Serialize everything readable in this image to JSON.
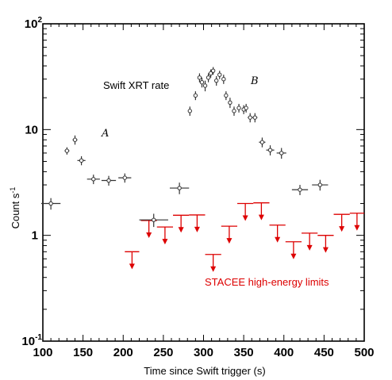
{
  "chart_data": {
    "type": "scatter",
    "xlabel": "Time since Swift trigger (s)",
    "ylabel_base": "Count s",
    "ylabel_exp": "-1",
    "xlim": [
      100,
      500
    ],
    "ylim": [
      0.1,
      100
    ],
    "yscale": "log",
    "x_ticks": [
      "100",
      "150",
      "200",
      "250",
      "300",
      "350",
      "400",
      "450",
      "500"
    ],
    "y_ticks": [
      {
        "value": 0.1,
        "base": "10",
        "exp": "-1"
      },
      {
        "value": 1,
        "base": "1",
        "exp": ""
      },
      {
        "value": 10,
        "base": "10",
        "exp": ""
      },
      {
        "value": 100,
        "base": "10",
        "exp": "2"
      }
    ],
    "annotations": {
      "xrt": "Swift XRT rate",
      "stacee": "STACEE high-energy limits",
      "region_a": "A",
      "region_b": "B"
    },
    "series": [
      {
        "color": "#333333",
        "points": [
          {
            "x": 110,
            "y": 2.0,
            "xerr": 12,
            "yerr": [
              0.25,
              0.25
            ]
          },
          {
            "x": 130,
            "y": 6.3,
            "xerr": 3,
            "yerr": [
              0.5,
              0.5
            ]
          },
          {
            "x": 140,
            "y": 8.0,
            "xerr": 3,
            "yerr": [
              0.8,
              0.8
            ]
          },
          {
            "x": 148,
            "y": 5.1,
            "xerr": 5,
            "yerr": [
              0.5,
              0.5
            ]
          },
          {
            "x": 163,
            "y": 3.4,
            "xerr": 8,
            "yerr": [
              0.35,
              0.35
            ]
          },
          {
            "x": 182,
            "y": 3.3,
            "xerr": 9,
            "yerr": [
              0.35,
              0.35
            ]
          },
          {
            "x": 202,
            "y": 3.5,
            "xerr": 8,
            "yerr": [
              0.35,
              0.35
            ]
          },
          {
            "x": 238,
            "y": 1.4,
            "xerr": 18,
            "yerr": [
              0.2,
              0.2
            ]
          },
          {
            "x": 270,
            "y": 2.8,
            "xerr": 12,
            "yerr": [
              0.35,
              0.35
            ]
          },
          {
            "x": 283,
            "y": 15.0,
            "xerr": 2,
            "yerr": [
              1.5,
              1.5
            ]
          },
          {
            "x": 290,
            "y": 21.0,
            "xerr": 2,
            "yerr": [
              2.0,
              2.0
            ]
          },
          {
            "x": 295,
            "y": 31.0,
            "xerr": 2,
            "yerr": [
              3.0,
              3.0
            ]
          },
          {
            "x": 298,
            "y": 28.0,
            "xerr": 2,
            "yerr": [
              3.0,
              3.0
            ]
          },
          {
            "x": 302,
            "y": 26.0,
            "xerr": 2,
            "yerr": [
              3.0,
              3.0
            ]
          },
          {
            "x": 306,
            "y": 31.0,
            "xerr": 2,
            "yerr": [
              3.0,
              3.0
            ]
          },
          {
            "x": 309,
            "y": 34.0,
            "xerr": 2,
            "yerr": [
              3.0,
              3.0
            ]
          },
          {
            "x": 312,
            "y": 36.0,
            "xerr": 2,
            "yerr": [
              3.0,
              3.0
            ]
          },
          {
            "x": 316,
            "y": 29.0,
            "xerr": 2,
            "yerr": [
              3.0,
              3.0
            ]
          },
          {
            "x": 320,
            "y": 33.0,
            "xerr": 2,
            "yerr": [
              3.0,
              3.0
            ]
          },
          {
            "x": 325,
            "y": 30.0,
            "xerr": 2,
            "yerr": [
              3.0,
              3.0
            ]
          },
          {
            "x": 328,
            "y": 21.0,
            "xerr": 2,
            "yerr": [
              2.0,
              2.0
            ]
          },
          {
            "x": 333,
            "y": 18.0,
            "xerr": 2,
            "yerr": [
              2.0,
              2.0
            ]
          },
          {
            "x": 338,
            "y": 15.0,
            "xerr": 2,
            "yerr": [
              1.5,
              1.5
            ]
          },
          {
            "x": 344,
            "y": 16.0,
            "xerr": 2,
            "yerr": [
              1.5,
              1.5
            ]
          },
          {
            "x": 350,
            "y": 15.5,
            "xerr": 2,
            "yerr": [
              1.5,
              1.5
            ]
          },
          {
            "x": 353,
            "y": 16.0,
            "xerr": 2,
            "yerr": [
              1.5,
              1.5
            ]
          },
          {
            "x": 358,
            "y": 13.0,
            "xerr": 3,
            "yerr": [
              1.3,
              1.3
            ]
          },
          {
            "x": 364,
            "y": 13.0,
            "xerr": 3,
            "yerr": [
              1.3,
              1.3
            ]
          },
          {
            "x": 373,
            "y": 7.6,
            "xerr": 4,
            "yerr": [
              0.8,
              0.8
            ]
          },
          {
            "x": 383,
            "y": 6.4,
            "xerr": 5,
            "yerr": [
              0.7,
              0.7
            ]
          },
          {
            "x": 397,
            "y": 6.0,
            "xerr": 6,
            "yerr": [
              0.7,
              0.7
            ]
          },
          {
            "x": 420,
            "y": 2.7,
            "xerr": 10,
            "yerr": [
              0.3,
              0.3
            ]
          },
          {
            "x": 445,
            "y": 3.0,
            "xerr": 10,
            "yerr": [
              0.35,
              0.35
            ]
          }
        ]
      },
      {
        "color": "#dd0000",
        "upper_limits": [
          {
            "x1": 202,
            "x2": 220,
            "y": 0.7
          },
          {
            "x1": 222,
            "x2": 242,
            "y": 1.38
          },
          {
            "x1": 242,
            "x2": 262,
            "y": 1.2
          },
          {
            "x1": 262,
            "x2": 282,
            "y": 1.55
          },
          {
            "x1": 282,
            "x2": 302,
            "y": 1.56
          },
          {
            "x1": 302,
            "x2": 322,
            "y": 0.66
          },
          {
            "x1": 322,
            "x2": 342,
            "y": 1.22
          },
          {
            "x1": 342,
            "x2": 362,
            "y": 2.0
          },
          {
            "x1": 362,
            "x2": 382,
            "y": 2.03
          },
          {
            "x1": 382,
            "x2": 402,
            "y": 1.25
          },
          {
            "x1": 402,
            "x2": 422,
            "y": 0.87
          },
          {
            "x1": 422,
            "x2": 442,
            "y": 1.05
          },
          {
            "x1": 442,
            "x2": 462,
            "y": 1.0
          },
          {
            "x1": 462,
            "x2": 482,
            "y": 1.58
          },
          {
            "x1": 482,
            "x2": 500,
            "y": 1.62
          }
        ]
      }
    ]
  }
}
